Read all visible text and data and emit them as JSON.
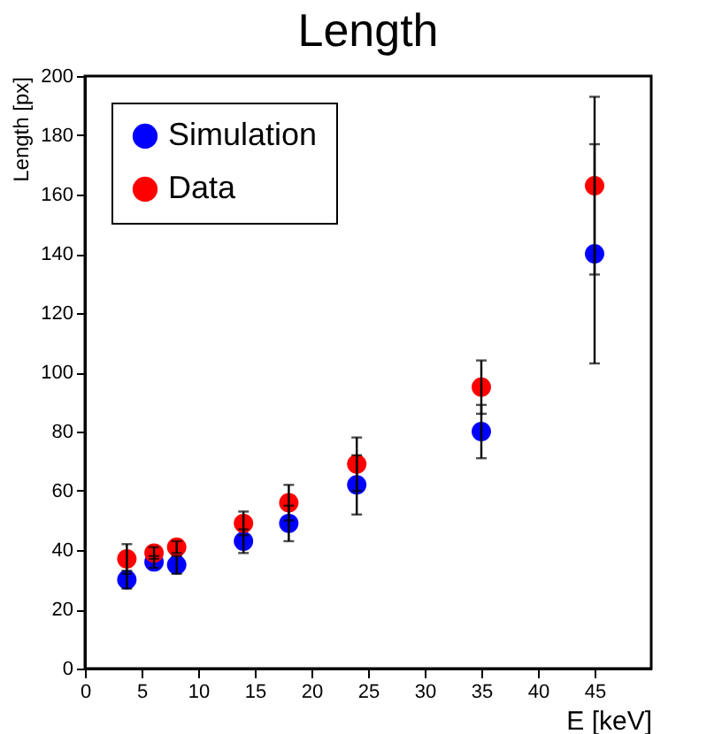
{
  "chart_data": {
    "type": "scatter",
    "title": "Length",
    "xlabel": "E [keV]",
    "ylabel": "Length [px]",
    "x": [
      3.7,
      6.1,
      8.1,
      14,
      18,
      24,
      35,
      45
    ],
    "xlim": [
      0,
      50
    ],
    "xticks": [
      0,
      5,
      10,
      15,
      20,
      25,
      30,
      35,
      40,
      45
    ],
    "ylim": [
      0,
      200
    ],
    "yticks": [
      0,
      20,
      40,
      60,
      80,
      100,
      120,
      140,
      160,
      180,
      200
    ],
    "marker": "circle",
    "legend": "top left",
    "grid": false,
    "series": [
      {
        "name": "Simulation",
        "color": "#0000ff",
        "values": [
          30,
          36,
          35,
          43,
          49,
          62,
          80,
          140
        ],
        "errors": [
          3,
          2,
          3,
          4,
          6,
          10,
          9,
          37
        ]
      },
      {
        "name": "Data",
        "color": "#ff0000",
        "values": [
          37,
          39,
          41,
          49,
          56,
          69,
          95,
          163
        ],
        "errors": [
          5,
          2,
          2,
          4,
          6,
          9,
          9,
          30
        ]
      }
    ]
  }
}
